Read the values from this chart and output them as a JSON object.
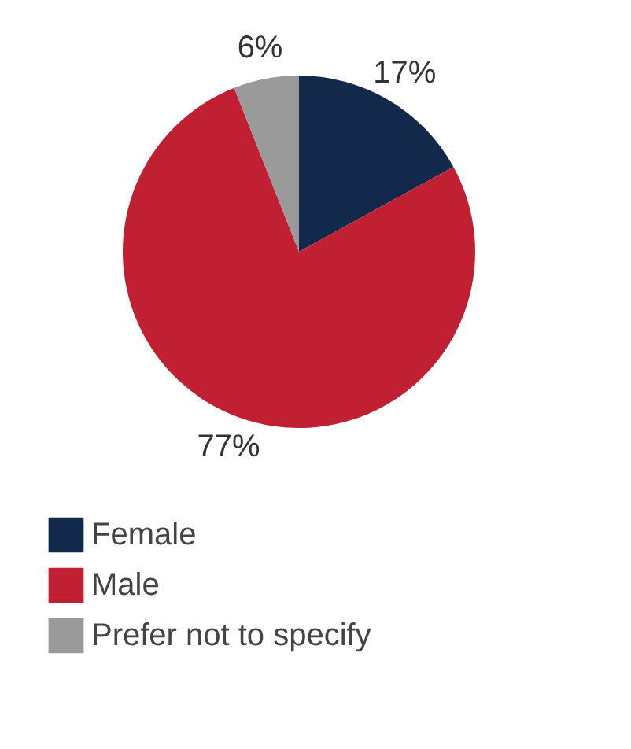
{
  "chart_data": {
    "type": "pie",
    "categories": [
      "Female",
      "Male",
      "Prefer not to specify"
    ],
    "values": [
      17,
      77,
      6
    ],
    "colors": [
      "#13294b",
      "#c12033",
      "#9a9a9a"
    ],
    "value_labels": [
      "17%",
      "77%",
      "6%"
    ],
    "legend": "bottom"
  }
}
